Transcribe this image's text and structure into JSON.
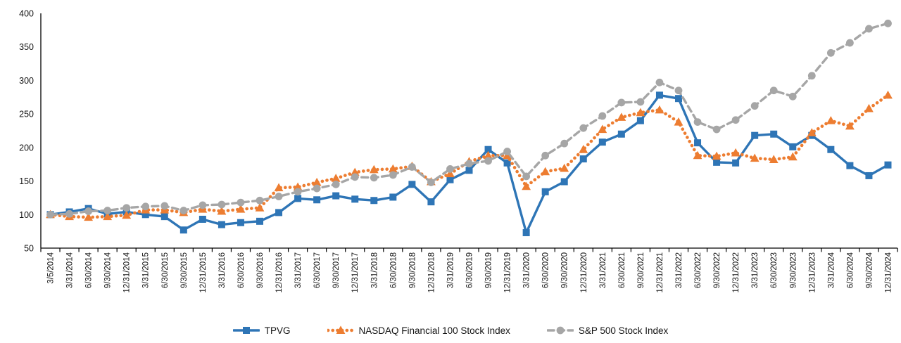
{
  "chart_data": {
    "type": "line",
    "title": "",
    "xlabel": "",
    "ylabel": "",
    "grid": false,
    "legend_position": "bottom",
    "background_color": "#ffffff",
    "axis_color": "#000000",
    "text_color": "#141414",
    "y_axis": {
      "min": 50,
      "max": 400,
      "step": 50,
      "tick_labels": [
        "50",
        "100",
        "150",
        "200",
        "250",
        "300",
        "350",
        "400"
      ]
    },
    "categories": [
      "3/5/2014",
      "3/31/2014",
      "6/30/2014",
      "9/30/2014",
      "12/31/2014",
      "3/31/2015",
      "6/30/2015",
      "9/30/2015",
      "12/31/2015",
      "3/31/2016",
      "6/30/2016",
      "9/30/2016",
      "12/31/2016",
      "3/31/2017",
      "6/30/2017",
      "9/30/2017",
      "12/31/2017",
      "3/31/2018",
      "6/30/2018",
      "9/30/2018",
      "12/31/2018",
      "3/31/2019",
      "6/30/2019",
      "9/30/2019",
      "12/31/2019",
      "3/31/2020",
      "6/30/2020",
      "9/30/2020",
      "12/31/2020",
      "3/31/2021",
      "6/30/2021",
      "9/30/2021",
      "12/31/2021",
      "3/31/2022",
      "6/30/2022",
      "9/30/2022",
      "12/31/2022",
      "3/31/2023",
      "6/30/2023",
      "9/30/2023",
      "12/31/2023",
      "3/31/2024",
      "6/30/2024",
      "9/30/2024",
      "12/31/2024"
    ],
    "series": [
      {
        "name": "TPVG",
        "color": "#2E75B6",
        "marker": "square",
        "line_style": "solid",
        "values": [
          100,
          104,
          109,
          101,
          104,
          100,
          97,
          77,
          93,
          85,
          88,
          90,
          103,
          124,
          122,
          128,
          123,
          121,
          126,
          145,
          119,
          152,
          166,
          197,
          177,
          73,
          134,
          149,
          183,
          208,
          220,
          240,
          278,
          273,
          207,
          178,
          177,
          218,
          220,
          201,
          218,
          197,
          173,
          158,
          174
        ]
      },
      {
        "name": "NASDAQ Financial 100 Stock Index",
        "color": "#ED7D31",
        "marker": "triangle",
        "line_style": "dotted",
        "values": [
          100,
          97,
          96,
          97,
          99,
          107,
          107,
          103,
          108,
          105,
          108,
          110,
          140,
          141,
          148,
          154,
          163,
          167,
          168,
          172,
          149,
          161,
          179,
          188,
          188,
          142,
          164,
          169,
          197,
          227,
          245,
          252,
          256,
          238,
          188,
          187,
          192,
          184,
          182,
          186,
          222,
          240,
          232,
          258,
          278
        ]
      },
      {
        "name": "S&P 500 Stock Index",
        "color": "#A6A6A6",
        "marker": "circle",
        "line_style": "dashed",
        "values": [
          100,
          101,
          105,
          106,
          110,
          112,
          113,
          106,
          114,
          115,
          118,
          121,
          127,
          134,
          139,
          145,
          156,
          155,
          159,
          171,
          148,
          168,
          176,
          180,
          194,
          157,
          188,
          206,
          229,
          247,
          267,
          268,
          297,
          285,
          238,
          227,
          241,
          262,
          285,
          276,
          307,
          341,
          356,
          377,
          385
        ]
      }
    ]
  }
}
